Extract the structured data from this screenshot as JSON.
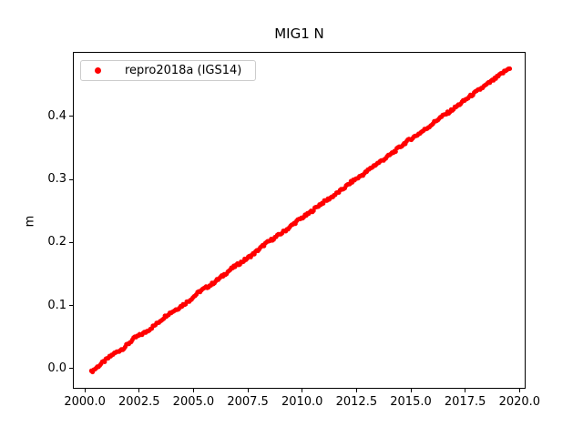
{
  "title": "MIG1 N",
  "ylabel": "m",
  "legend": {
    "label": "repro2018a (IGS14)",
    "marker_color": "#ff0000",
    "position": "upper left"
  },
  "chart_data": {
    "type": "scatter",
    "title": "MIG1 N",
    "xlabel": "",
    "ylabel": "m",
    "xlim": [
      1999.45,
      2020.28
    ],
    "ylim": [
      -0.0318,
      0.5025
    ],
    "xticks": [
      2000.0,
      2002.5,
      2005.0,
      2007.5,
      2010.0,
      2012.5,
      2015.0,
      2017.5,
      2020.0
    ],
    "xtick_labels": [
      "2000.0",
      "2002.5",
      "2005.0",
      "2007.5",
      "2010.0",
      "2012.5",
      "2015.0",
      "2017.5",
      "2020.0"
    ],
    "yticks": [
      0.0,
      0.1,
      0.2,
      0.3,
      0.4
    ],
    "ytick_labels": [
      "0.0",
      "0.1",
      "0.2",
      "0.3",
      "0.4"
    ],
    "grid": false,
    "legend_position": "upper left",
    "series": [
      {
        "name": "repro2018a (IGS14)",
        "color": "#ff0000",
        "marker": "circle",
        "marker_radius": 2.5,
        "trend": "linear",
        "slope_m_per_year": 0.025,
        "x": [
          2000.3,
          2000.8,
          2001.3,
          2001.8,
          2002.3,
          2002.8,
          2003.3,
          2003.8,
          2004.3,
          2004.8,
          2005.3,
          2005.8,
          2006.3,
          2006.8,
          2007.3,
          2007.8,
          2008.3,
          2008.8,
          2009.3,
          2009.8,
          2010.3,
          2010.8,
          2011.3,
          2011.8,
          2012.3,
          2012.8,
          2013.3,
          2013.8,
          2014.3,
          2014.8,
          2015.3,
          2015.8,
          2016.3,
          2016.8,
          2017.3,
          2017.8,
          2018.3,
          2018.8,
          2019.3,
          2019.55
        ],
        "y": [
          -0.005,
          0.009,
          0.023,
          0.033,
          0.049,
          0.058,
          0.071,
          0.086,
          0.096,
          0.108,
          0.123,
          0.133,
          0.146,
          0.16,
          0.171,
          0.183,
          0.198,
          0.209,
          0.221,
          0.235,
          0.246,
          0.26,
          0.271,
          0.283,
          0.297,
          0.308,
          0.322,
          0.333,
          0.346,
          0.36,
          0.371,
          0.383,
          0.397,
          0.408,
          0.421,
          0.434,
          0.446,
          0.458,
          0.471,
          0.477
        ]
      }
    ]
  }
}
